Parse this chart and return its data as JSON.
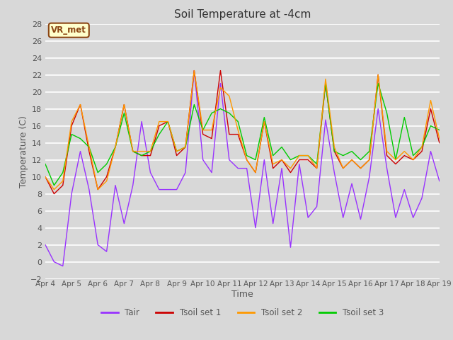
{
  "title": "Soil Temperature at -4cm",
  "xlabel": "Time",
  "ylabel": "Temperature (C)",
  "ylim": [
    -2,
    28
  ],
  "background_color": "#d8d8d8",
  "plot_bg_color": "#d8d8d8",
  "grid_color": "#bbbbbb",
  "annotation_text": "VR_met",
  "annotation_bg": "#ffffcc",
  "annotation_border": "#8b4513",
  "x_ticks": [
    "Apr 4",
    "Apr 5",
    "Apr 6",
    "Apr 7",
    "Apr 8",
    "Apr 9",
    "Apr 10",
    "Apr 11",
    "Apr 12",
    "Apr 13",
    "Apr 14",
    "Apr 15",
    "Apr 16",
    "Apr 17",
    "Apr 18",
    "Apr 19"
  ],
  "colors": {
    "Tair": "#9933ff",
    "Tsoil1": "#cc0000",
    "Tsoil2": "#ff9900",
    "Tsoil3": "#00cc00"
  },
  "tair": [
    2,
    0,
    -0.5,
    8,
    13,
    8.5,
    2,
    1.2,
    9,
    4.5,
    9,
    16.5,
    10.5,
    8.5,
    8.5,
    8.5,
    10.5,
    22.5,
    12,
    10.5,
    21,
    12,
    11,
    11,
    4,
    12,
    4.5,
    11,
    1.7,
    11.5,
    5.2,
    6.5,
    16.7,
    10.5,
    5.2,
    9.2,
    5,
    10,
    18,
    11,
    5.2,
    8.5,
    5.2,
    7.5,
    13,
    9.5
  ],
  "tsoil1": [
    10,
    8,
    9,
    16,
    18.5,
    13,
    8.5,
    10,
    13.5,
    18.5,
    13,
    12.5,
    12.5,
    16,
    16.5,
    12.5,
    13.5,
    22.5,
    15,
    14.5,
    22.5,
    15,
    15,
    12,
    10.5,
    16.5,
    11,
    12,
    10.5,
    12,
    12,
    11,
    21,
    13,
    11,
    12,
    11,
    12,
    22,
    12.5,
    11.5,
    12.5,
    12,
    13,
    18,
    14
  ],
  "tsoil2": [
    10,
    8.5,
    9.5,
    16.5,
    18.5,
    13.5,
    8.5,
    9.5,
    13.5,
    18.5,
    13,
    13,
    13,
    16.5,
    16.5,
    13,
    13.5,
    22.5,
    15.5,
    15.5,
    20.5,
    19.5,
    15.5,
    12,
    10.5,
    16.5,
    11.5,
    12,
    11,
    12.5,
    12.5,
    11,
    21.5,
    13.5,
    11,
    12,
    11,
    12,
    22,
    13,
    12,
    13,
    12,
    13.5,
    19,
    14.5
  ],
  "tsoil3": [
    11.5,
    9,
    10.5,
    15,
    14.5,
    13.5,
    10.5,
    11.5,
    13.5,
    17.5,
    13,
    12.5,
    13,
    15,
    16.5,
    13,
    13.5,
    18.5,
    15.5,
    17.5,
    18,
    17.5,
    16.5,
    12.5,
    12,
    17,
    12.5,
    13.5,
    12,
    12.5,
    12.5,
    11.5,
    21,
    13,
    12.5,
    13,
    12,
    13,
    21,
    17.5,
    12,
    17,
    12.5,
    13.5,
    16,
    15.5
  ]
}
